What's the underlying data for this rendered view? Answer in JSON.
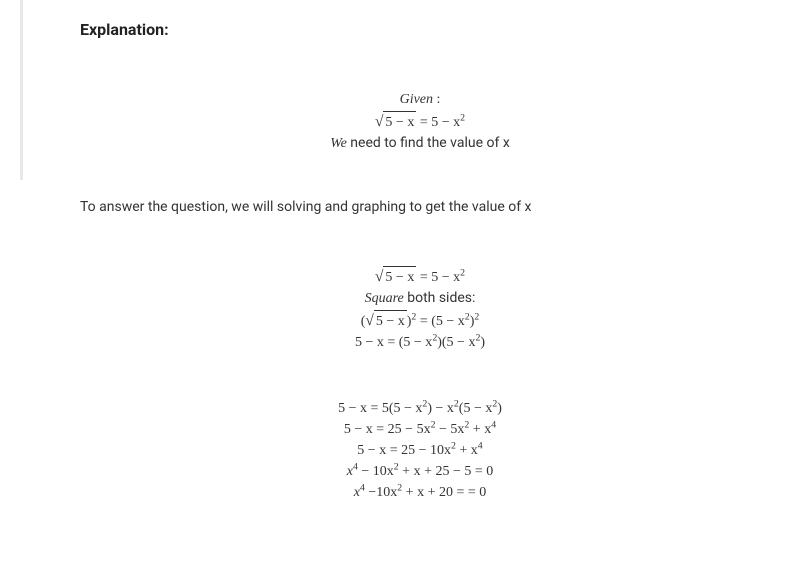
{
  "heading": "Explanation:",
  "block1": {
    "line1_italic": "Given",
    "line1_colon": " :",
    "line2": "√(5 − x) = 5 − x²",
    "line3_italic": "We",
    "line3_rest": " need to find the value of x"
  },
  "text_line": "To answer the question, we will solving and graphing to get the value of x",
  "block2": {
    "line1": "√(5 − x) = 5 − x²",
    "line2_italic": "Square",
    "line2_rest": " both sides:",
    "line3": "(√(5 − x))² = (5 − x²)²",
    "line4": "5 − x = (5 − x²)(5 − x²)"
  },
  "block3": {
    "line1": "5 − x = 5(5 − x²) − x²(5 − x²)",
    "line2": "5 − x = 25 − 5x² − 5x² + x⁴",
    "line3": "5 − x = 25 − 10x² + x⁴",
    "line4": "x⁴ − 10x² + x + 25 − 5 = 0",
    "line5": "x⁴ −10x² + x + 20 = = 0"
  },
  "colors": {
    "text": "#333333",
    "heading": "#222222",
    "background": "#ffffff",
    "border": "#e8e8e8"
  },
  "typography": {
    "heading_fontsize": 16,
    "heading_weight": 700,
    "body_fontsize": 14,
    "math_family": "Times New Roman"
  }
}
